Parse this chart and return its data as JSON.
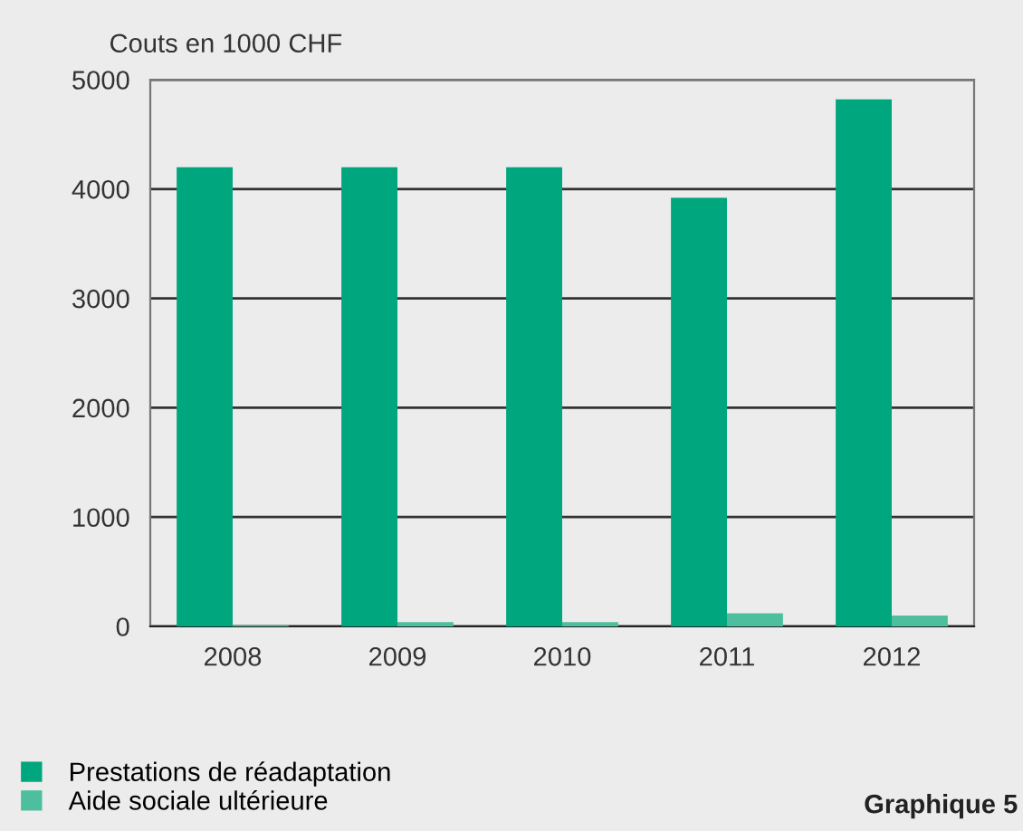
{
  "chart_data": {
    "type": "bar",
    "ylabel": "Couts en 1000 CHF",
    "categories": [
      "2008",
      "2009",
      "2010",
      "2011",
      "2012"
    ],
    "series": [
      {
        "name": "Prestations de réadaptation",
        "color": "#00a67d",
        "values": [
          4200,
          4200,
          4200,
          3920,
          4820
        ]
      },
      {
        "name": "Aide sociale ultérieure",
        "color": "#4dbf9f",
        "values": [
          10,
          40,
          40,
          120,
          100
        ]
      }
    ],
    "ylim": [
      0,
      5000
    ],
    "yticks": [
      0,
      1000,
      2000,
      3000,
      4000,
      5000
    ],
    "grid": "y",
    "legend": "bottom left",
    "annotations": [
      "Graphique 5"
    ]
  }
}
